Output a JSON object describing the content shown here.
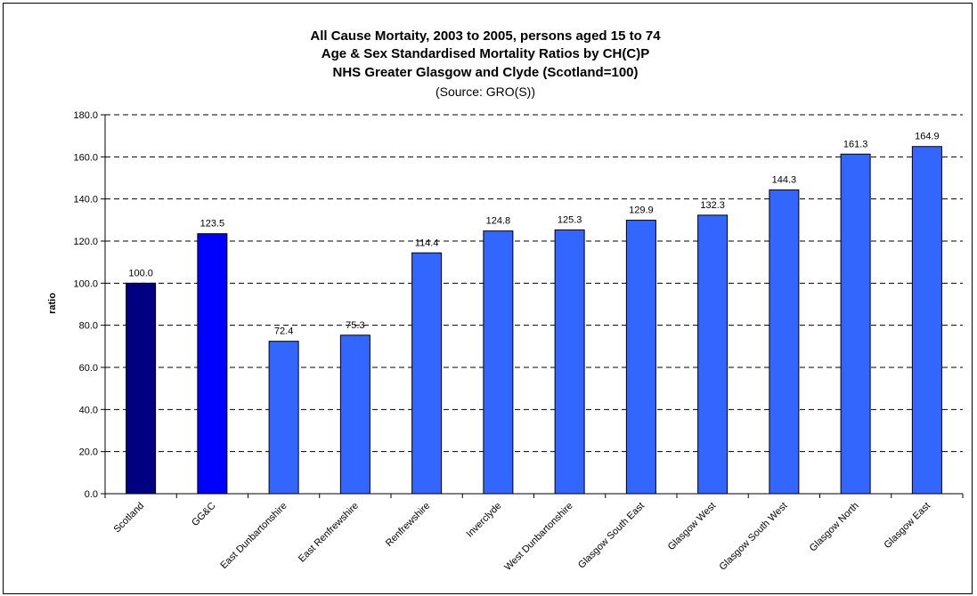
{
  "chart_data": {
    "type": "bar",
    "title": [
      "All Cause Mortaity, 2003 to 2005, persons aged 15 to 74",
      "Age & Sex Standardised Mortality Ratios by CH(C)P",
      "NHS Greater Glasgow and Clyde (Scotland=100)"
    ],
    "subtitle": "(Source: GRO(S))",
    "xlabel": "",
    "ylabel": "ratio",
    "ylim": [
      0,
      180
    ],
    "ytick_step": 20,
    "yticks": [
      "0.0",
      "20.0",
      "40.0",
      "60.0",
      "80.0",
      "100.0",
      "120.0",
      "140.0",
      "160.0",
      "180.0"
    ],
    "grid": true,
    "grid_style": "dashed",
    "categories": [
      "Scotland",
      "GG&C",
      "East Dunbartonshire",
      "East Renfrewshire",
      "Renfrewshire",
      "Inverclyde",
      "West Dunbartonshire",
      "Glasgow South East",
      "Glasgow West",
      "Glasgow South West",
      "Glasgow North",
      "Glasgow East"
    ],
    "values": [
      100.0,
      123.5,
      72.4,
      75.3,
      114.4,
      124.8,
      125.3,
      129.9,
      132.3,
      144.3,
      161.3,
      164.9
    ],
    "data_labels": [
      "100.0",
      "123.5",
      "72.4",
      "75.3",
      "114.4",
      "124.8",
      "125.3",
      "129.9",
      "132.3",
      "144.3",
      "161.3",
      "164.9"
    ],
    "colors": [
      "#000080",
      "#0000ff",
      "#3366ff",
      "#3366ff",
      "#3366ff",
      "#3366ff",
      "#3366ff",
      "#3366ff",
      "#3366ff",
      "#3366ff",
      "#3366ff",
      "#3366ff"
    ]
  }
}
